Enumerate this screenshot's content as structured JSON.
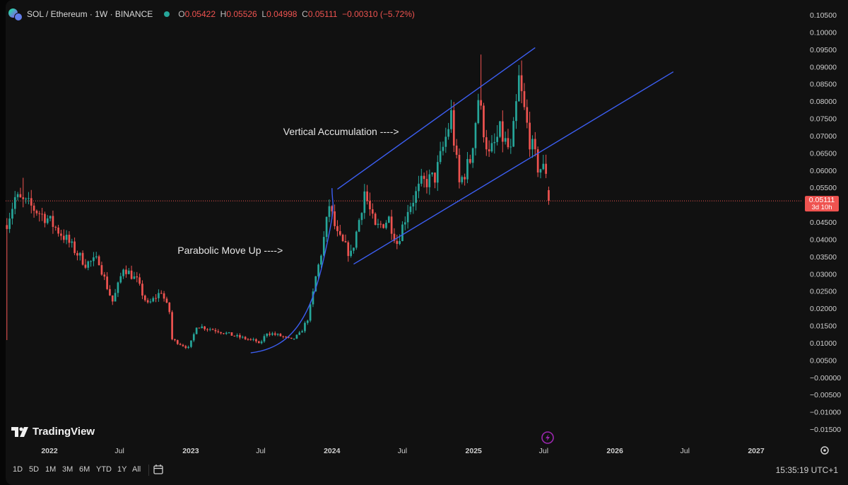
{
  "legend": {
    "symbol": "SOL / Ethereum · 1W · BINANCE",
    "open_key": "O",
    "open": "0.05422",
    "high_key": "H",
    "high": "0.05526",
    "low_key": "L",
    "low": "0.04998",
    "close_key": "C",
    "close": "0.05111",
    "change": "−0.00310 (−5.72%)"
  },
  "price_tag": {
    "value": "0.05111",
    "countdown": "3d 10h"
  },
  "annotations": {
    "vertical": "Vertical Accumulation ---->",
    "parabolic": "Parabolic Move Up ---->"
  },
  "branding": {
    "name": "TradingView"
  },
  "ranges": [
    "1D",
    "5D",
    "1M",
    "3M",
    "6M",
    "YTD",
    "1Y",
    "All"
  ],
  "clock": "15:35:19 UTC+1",
  "colors": {
    "up": "#26a69a",
    "down": "#ef5350",
    "drawing": "#3c5ef2",
    "background": "#111111"
  },
  "icons": [
    "calendar-range-icon",
    "settings-gear-icon",
    "lightning-icon"
  ],
  "chart_data": {
    "type": "candlestick",
    "title": "SOL / Ethereum · 1W · BINANCE",
    "ylim": [
      -0.017,
      0.106
    ],
    "y_ticks": [
      "0.10500",
      "0.10000",
      "0.09500",
      "0.09000",
      "0.08500",
      "0.08000",
      "0.07500",
      "0.07000",
      "0.06500",
      "0.06000",
      "0.05500",
      "0.05000",
      "0.04500",
      "0.04000",
      "0.03500",
      "0.03000",
      "0.02500",
      "0.02000",
      "0.01500",
      "0.01000",
      "0.00500",
      "−0.00000",
      "−0.00500",
      "−0.01000",
      "−0.01500"
    ],
    "x_ticks": [
      {
        "label": "2022",
        "date": "2022-01-01",
        "bold": true
      },
      {
        "label": "Jul",
        "date": "2022-07-01",
        "bold": false
      },
      {
        "label": "2023",
        "date": "2023-01-01",
        "bold": true
      },
      {
        "label": "Jul",
        "date": "2023-07-01",
        "bold": false
      },
      {
        "label": "2024",
        "date": "2024-01-01",
        "bold": true
      },
      {
        "label": "Jul",
        "date": "2024-07-01",
        "bold": false
      },
      {
        "label": "2025",
        "date": "2025-01-01",
        "bold": true
      },
      {
        "label": "Jul",
        "date": "2025-07-01",
        "bold": false
      },
      {
        "label": "2026",
        "date": "2026-01-01",
        "bold": true
      },
      {
        "label": "Jul",
        "date": "2026-07-01",
        "bold": false
      },
      {
        "label": "2027",
        "date": "2027-01-01",
        "bold": true
      }
    ],
    "last_price": 0.05111,
    "price_path": [
      [
        "2021-09-13",
        0.045
      ],
      [
        "2021-10-04",
        0.052
      ],
      [
        "2021-11-08",
        0.05
      ],
      [
        "2021-12-27",
        0.046
      ],
      [
        "2022-02-14",
        0.04
      ],
      [
        "2022-04-04",
        0.033
      ],
      [
        "2022-05-09",
        0.034
      ],
      [
        "2022-06-13",
        0.022
      ],
      [
        "2022-07-11",
        0.032
      ],
      [
        "2022-08-15",
        0.028
      ],
      [
        "2022-09-12",
        0.021
      ],
      [
        "2022-10-17",
        0.025
      ],
      [
        "2022-11-07",
        0.019
      ],
      [
        "2022-11-14",
        0.011
      ],
      [
        "2022-12-26",
        0.0085
      ],
      [
        "2023-01-16",
        0.015
      ],
      [
        "2023-03-13",
        0.0135
      ],
      [
        "2023-05-01",
        0.0118
      ],
      [
        "2023-06-19",
        0.0105
      ],
      [
        "2023-06-26",
        0.0095
      ],
      [
        "2023-07-17",
        0.013
      ],
      [
        "2023-08-21",
        0.012
      ],
      [
        "2023-09-18",
        0.0108
      ],
      [
        "2023-10-09",
        0.0125
      ],
      [
        "2023-10-30",
        0.017
      ],
      [
        "2023-11-20",
        0.029
      ],
      [
        "2023-12-25",
        0.05
      ],
      [
        "2024-01-15",
        0.041
      ],
      [
        "2024-02-19",
        0.0355
      ],
      [
        "2024-03-25",
        0.054
      ],
      [
        "2024-04-22",
        0.043
      ],
      [
        "2024-05-27",
        0.046
      ],
      [
        "2024-06-17",
        0.039
      ],
      [
        "2024-07-15",
        0.049
      ],
      [
        "2024-08-19",
        0.056
      ],
      [
        "2024-09-23",
        0.058
      ],
      [
        "2024-11-04",
        0.076
      ],
      [
        "2024-11-25",
        0.056
      ],
      [
        "2024-12-23",
        0.063
      ],
      [
        "2025-01-13",
        0.081
      ],
      [
        "2025-02-10",
        0.064
      ],
      [
        "2025-03-10",
        0.071
      ],
      [
        "2025-04-07",
        0.065
      ],
      [
        "2025-04-28",
        0.086
      ],
      [
        "2025-05-26",
        0.069
      ],
      [
        "2025-06-16",
        0.061
      ],
      [
        "2025-07-07",
        0.06
      ],
      [
        "2025-07-14",
        0.0511
      ]
    ],
    "channel_upper": [
      [
        "2024-01-15",
        0.0545
      ],
      [
        "2025-06-09",
        0.0955
      ]
    ],
    "channel_lower": [
      [
        "2024-02-26",
        0.0328
      ],
      [
        "2026-06-01",
        0.0885
      ]
    ],
    "parabola": [
      [
        "2023-06-05",
        0.0071
      ],
      [
        "2023-09-18",
        0.0085
      ],
      [
        "2023-11-06",
        0.017
      ],
      [
        "2023-12-11",
        0.0345
      ],
      [
        "2024-01-01",
        0.0548
      ]
    ],
    "annotations": [
      {
        "text": "Vertical Accumulation ---->",
        "date": "2023-08-28",
        "price": 0.0702
      },
      {
        "text": "Parabolic Move Up ---->",
        "date": "2022-11-28",
        "price": 0.0358
      }
    ]
  }
}
